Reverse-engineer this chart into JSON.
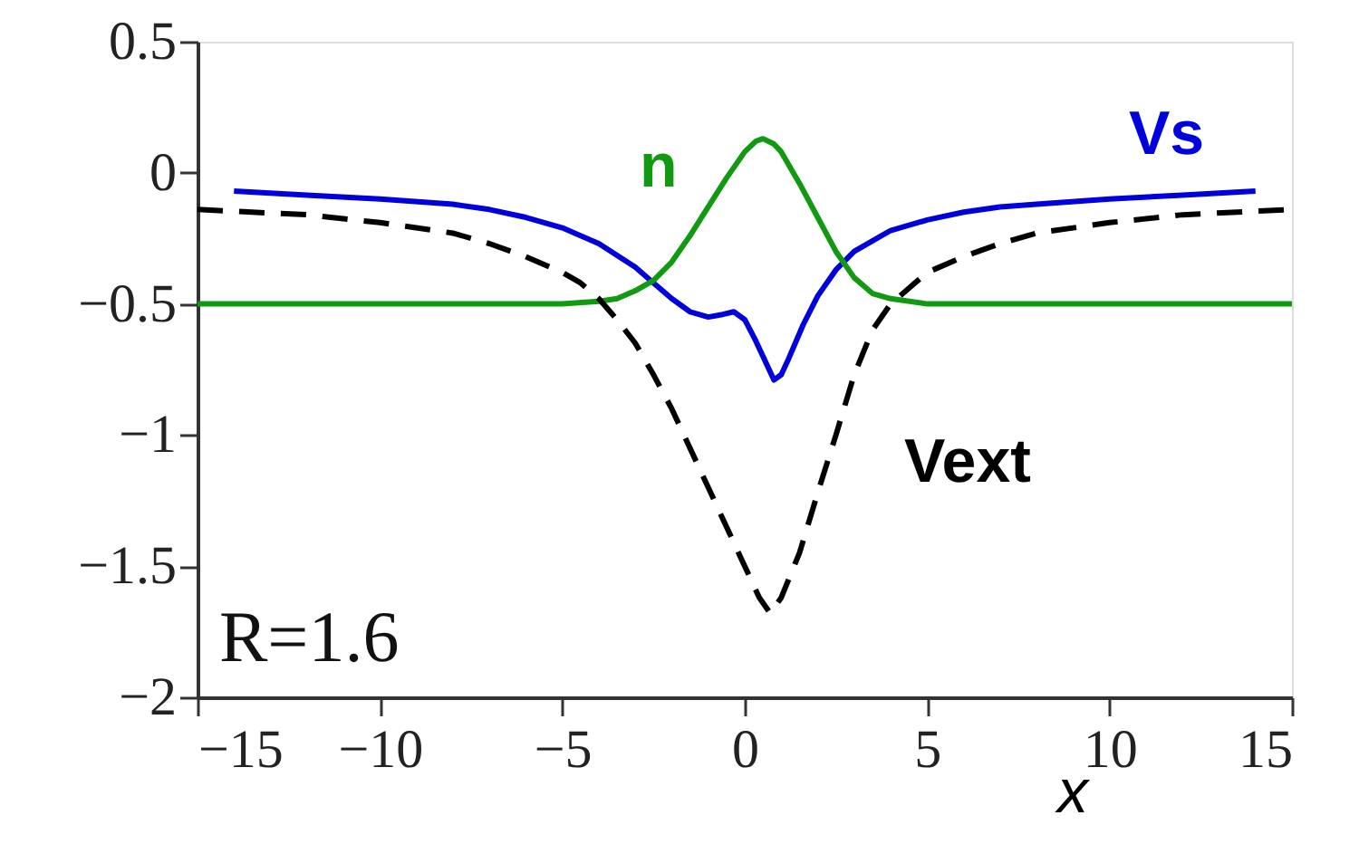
{
  "chart_data": {
    "type": "line",
    "xlabel": "x",
    "xlim": [
      -15,
      15
    ],
    "xticks": [
      -15,
      -10,
      -5,
      0,
      5,
      10,
      15
    ],
    "ylim": [
      -2,
      0.5
    ],
    "yticks": [
      -2,
      -1.5,
      -1,
      -0.5,
      0,
      0.5
    ],
    "grid": false,
    "marker": "none",
    "annotations": [
      "R=1.6"
    ],
    "series": [
      {
        "name": "Vs",
        "color": "#0000dd",
        "line_style": "solid",
        "x": [
          -14,
          -12,
          -10,
          -8,
          -7,
          -6,
          -5,
          -4,
          -3,
          -2.5,
          -2,
          -1.5,
          -1,
          -0.6,
          -0.3,
          0,
          0.3,
          0.5,
          0.8,
          1.0,
          1.2,
          1.6,
          2,
          2.5,
          3,
          4,
          5,
          6,
          7,
          8,
          10,
          12,
          14
        ],
        "values": [
          -0.07,
          -0.085,
          -0.1,
          -0.12,
          -0.14,
          -0.17,
          -0.21,
          -0.27,
          -0.36,
          -0.42,
          -0.48,
          -0.53,
          -0.55,
          -0.54,
          -0.53,
          -0.56,
          -0.64,
          -0.7,
          -0.79,
          -0.77,
          -0.71,
          -0.58,
          -0.47,
          -0.37,
          -0.3,
          -0.22,
          -0.18,
          -0.15,
          -0.13,
          -0.12,
          -0.1,
          -0.085,
          -0.07
        ]
      },
      {
        "name": "n",
        "color": "#119911",
        "line_style": "solid",
        "x": [
          -15,
          -10,
          -6,
          -5,
          -4,
          -3.5,
          -3,
          -2.5,
          -2,
          -1.5,
          -1,
          -0.5,
          0,
          0.3,
          0.5,
          0.8,
          1,
          1.5,
          2,
          2.5,
          3,
          3.5,
          4,
          5,
          6,
          10,
          15
        ],
        "values": [
          -0.5,
          -0.5,
          -0.5,
          -0.5,
          -0.49,
          -0.48,
          -0.45,
          -0.41,
          -0.34,
          -0.24,
          -0.13,
          -0.02,
          0.08,
          0.12,
          0.13,
          0.11,
          0.08,
          -0.04,
          -0.17,
          -0.3,
          -0.4,
          -0.46,
          -0.48,
          -0.5,
          -0.5,
          -0.5,
          -0.5
        ]
      },
      {
        "name": "Vext",
        "color": "#000000",
        "line_style": "dashed",
        "x": [
          -15,
          -12,
          -10,
          -8,
          -7,
          -6,
          -5,
          -4.5,
          -4,
          -3.5,
          -3,
          -2.5,
          -2,
          -1.5,
          -1,
          -0.5,
          0,
          0.4,
          0.7,
          1,
          1.5,
          2,
          2.5,
          3,
          3.5,
          4,
          4.5,
          5,
          6,
          7,
          8,
          10,
          12,
          15
        ],
        "values": [
          -0.14,
          -0.16,
          -0.19,
          -0.23,
          -0.27,
          -0.32,
          -0.38,
          -0.42,
          -0.48,
          -0.56,
          -0.65,
          -0.77,
          -0.9,
          -1.05,
          -1.2,
          -1.35,
          -1.5,
          -1.62,
          -1.68,
          -1.62,
          -1.45,
          -1.22,
          -1.0,
          -0.77,
          -0.6,
          -0.5,
          -0.44,
          -0.38,
          -0.32,
          -0.27,
          -0.23,
          -0.19,
          -0.16,
          -0.14
        ]
      }
    ]
  }
}
